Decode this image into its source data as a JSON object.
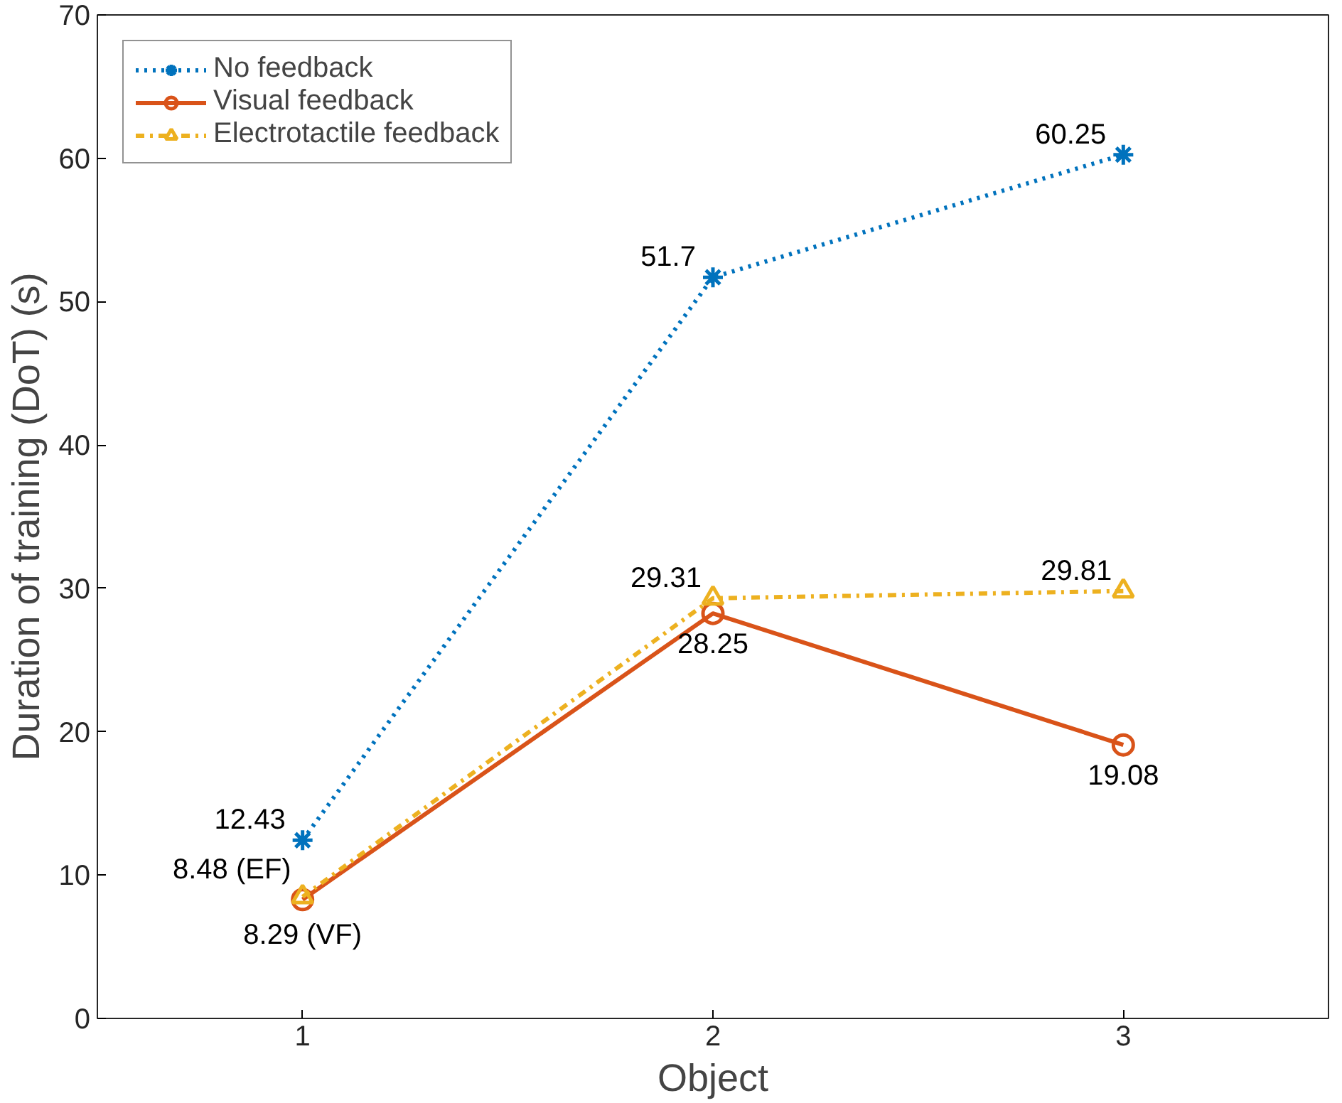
{
  "chart_data": {
    "type": "line",
    "xlabel": "Object",
    "ylabel": "Duration of training (DoT) (s)",
    "x": [
      1,
      2,
      3
    ],
    "xlim": [
      0.5,
      3.5
    ],
    "xticks": [
      1,
      2,
      3
    ],
    "ylim": [
      0,
      70
    ],
    "yticks": [
      0,
      10,
      20,
      30,
      40,
      50,
      60,
      70
    ],
    "grid": false,
    "legend": "top left",
    "series": [
      {
        "name": "No feedback",
        "color": "#0072bd",
        "values": [
          12.43,
          51.7,
          60.25
        ],
        "marker": "cross",
        "line_style": "dotted",
        "value_labels": [
          "12.43",
          "51.7",
          "60.25"
        ]
      },
      {
        "name": "Visual feedback",
        "color": "#d95319",
        "values": [
          8.29,
          28.25,
          19.08
        ],
        "marker": "circle",
        "line_style": "solid",
        "value_labels": [
          "8.29 (VF)",
          "28.25",
          "19.08"
        ]
      },
      {
        "name": "Electrotactile feedback",
        "color": "#edb120",
        "values": [
          8.48,
          29.31,
          29.81
        ],
        "marker": "triangle",
        "line_style": "dashdot",
        "value_labels": [
          "8.48 (EF)",
          "29.31",
          "29.81"
        ]
      }
    ]
  }
}
